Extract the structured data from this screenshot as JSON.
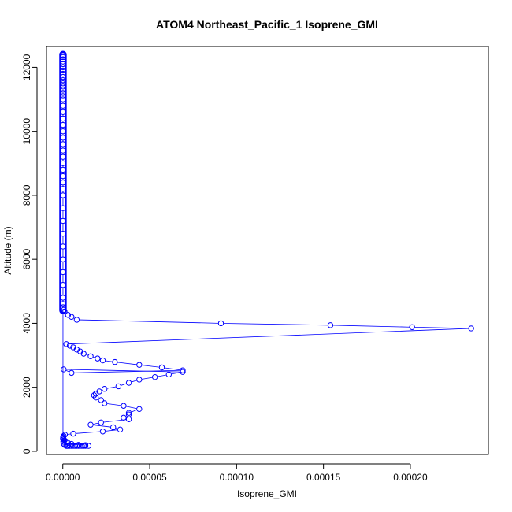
{
  "chart_data": {
    "type": "scatter",
    "title": "ATOM4 Northeast_Pacific_1 Isoprene_GMI",
    "xlabel": "Isoprene_GMI",
    "ylabel": "Altitude (m)",
    "xlim": [
      -9.4e-06,
      0.0002449
    ],
    "ylim": [
      -100,
      12650
    ],
    "x_ticks": [
      0,
      5e-05,
      0.0001,
      0.00015,
      0.0002
    ],
    "x_tick_labels": [
      "0.00000",
      "0.00005",
      "0.00010",
      "0.00015",
      "0.00020"
    ],
    "y_ticks": [
      0,
      2000,
      4000,
      6000,
      8000,
      10000,
      12000
    ],
    "y_tick_labels": [
      "0",
      "2000",
      "4000",
      "6000",
      "8000",
      "10000",
      "12000"
    ],
    "grid": false,
    "legend": "none",
    "marker": "open-circle",
    "connected": true,
    "color": "#0000ff",
    "near_zero_vertical_run": {
      "x": 1e-07,
      "y_from": 4400,
      "y_to": 12400
    },
    "series": [
      {
        "x": [
          1e-07,
          1e-07,
          1e-07,
          1e-07,
          1e-07,
          1e-07,
          1e-07,
          1e-07,
          1e-07,
          1e-07,
          1e-07,
          1e-07,
          1e-07,
          1e-07,
          1e-07,
          1e-07,
          1e-07,
          1e-07,
          1e-07,
          1e-07,
          1e-07,
          1e-07,
          1e-07,
          1e-07,
          1e-07,
          1e-07,
          1e-07,
          1e-07,
          1e-07,
          1e-07,
          1e-07,
          1e-07,
          1e-07,
          1e-07,
          1e-07,
          1e-07,
          1e-07,
          1e-07,
          1e-07,
          1e-07,
          1e-07,
          1e-07,
          3e-07,
          4e-07,
          1e-06,
          2e-06,
          2.5e-06,
          3e-06,
          4e-06,
          5e-06,
          6e-06,
          7e-06,
          8e-06,
          9e-06,
          1e-05,
          1.1e-05,
          1.2e-05,
          1.3e-05,
          1.48e-05,
          1.3e-05,
          9e-06,
          5e-06,
          3e-06,
          2e-06,
          1e-06,
          5e-07,
          2e-07,
          2e-07,
          5e-07,
          1.2e-06,
          6e-06,
          2.3e-05,
          3.3e-05,
          2.9e-05,
          1.6e-05,
          2.2e-05,
          3.8e-05,
          3.5e-05,
          3.8e-05,
          3.8e-05,
          4.4e-05,
          3.5e-05,
          2.4e-05,
          2.2e-05,
          1.9e-05,
          1.8e-05,
          1.9e-05,
          2.1e-05,
          2.4e-05,
          3.2e-05,
          3.8e-05,
          4.4e-05,
          5.3e-05,
          6.1e-05,
          6.9e-05,
          5e-07,
          5e-06,
          6.9e-05,
          5.7e-05,
          4.4e-05,
          3e-05,
          2.3e-05,
          2e-05,
          1.6e-05,
          1.2e-05,
          1e-05,
          8e-06,
          6e-06,
          4e-06,
          2e-06,
          0.000235,
          0.000201,
          0.000154,
          9.1e-05,
          8e-06,
          5e-06,
          3e-06,
          1e-06,
          5e-07,
          2e-07,
          1e-07
        ],
        "y": [
          12380,
          12320,
          12250,
          12180,
          12100,
          12000,
          11900,
          11800,
          11700,
          11600,
          11500,
          11400,
          11300,
          11200,
          11100,
          11000,
          10800,
          10600,
          10400,
          10200,
          10000,
          9800,
          9600,
          9400,
          9200,
          9000,
          8800,
          8600,
          8400,
          8200,
          8000,
          7600,
          7200,
          6800,
          6400,
          6000,
          5600,
          5200,
          4800,
          4600,
          4500,
          400,
          300,
          240,
          200,
          170,
          170,
          170,
          170,
          170,
          170,
          170,
          170,
          170,
          170,
          170,
          170,
          170,
          170,
          190,
          200,
          230,
          260,
          300,
          340,
          370,
          420,
          450,
          480,
          520,
          550,
          620,
          680,
          750,
          830,
          900,
          1000,
          1050,
          1150,
          1200,
          1320,
          1420,
          1500,
          1600,
          1680,
          1750,
          1800,
          1870,
          1950,
          2030,
          2140,
          2240,
          2320,
          2400,
          2480,
          2560,
          2450,
          2530,
          2620,
          2700,
          2790,
          2840,
          2900,
          2970,
          3050,
          3120,
          3180,
          3250,
          3300,
          3350,
          3840,
          3880,
          3940,
          4000,
          4110,
          4200,
          4260,
          4370,
          4420,
          4500,
          4600
        ]
      }
    ]
  }
}
